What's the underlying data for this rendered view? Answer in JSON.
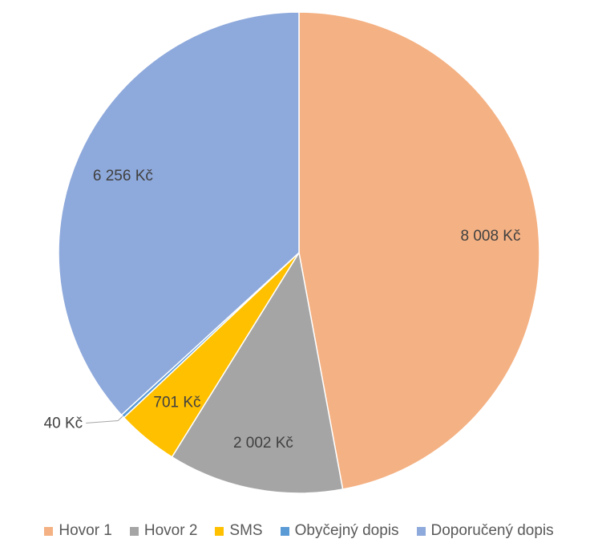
{
  "chart_data": {
    "type": "pie",
    "title": "",
    "categories": [
      "Hovor 1",
      "Hovor 2",
      "SMS",
      "Obyčejný dopis",
      "Doporučený dopis"
    ],
    "values": [
      8008,
      2002,
      701,
      40,
      6256
    ],
    "value_labels": [
      "8 008 Kč",
      "2 002 Kč",
      "701 Kč",
      "40 Kč",
      "6 256 Kč"
    ],
    "colors": [
      "#F4B183",
      "#A5A5A5",
      "#FFC000",
      "#5B9BD5",
      "#8EA9DB"
    ],
    "legend_position": "bottom",
    "start_angle": "12 o'clock",
    "direction": "clockwise"
  }
}
